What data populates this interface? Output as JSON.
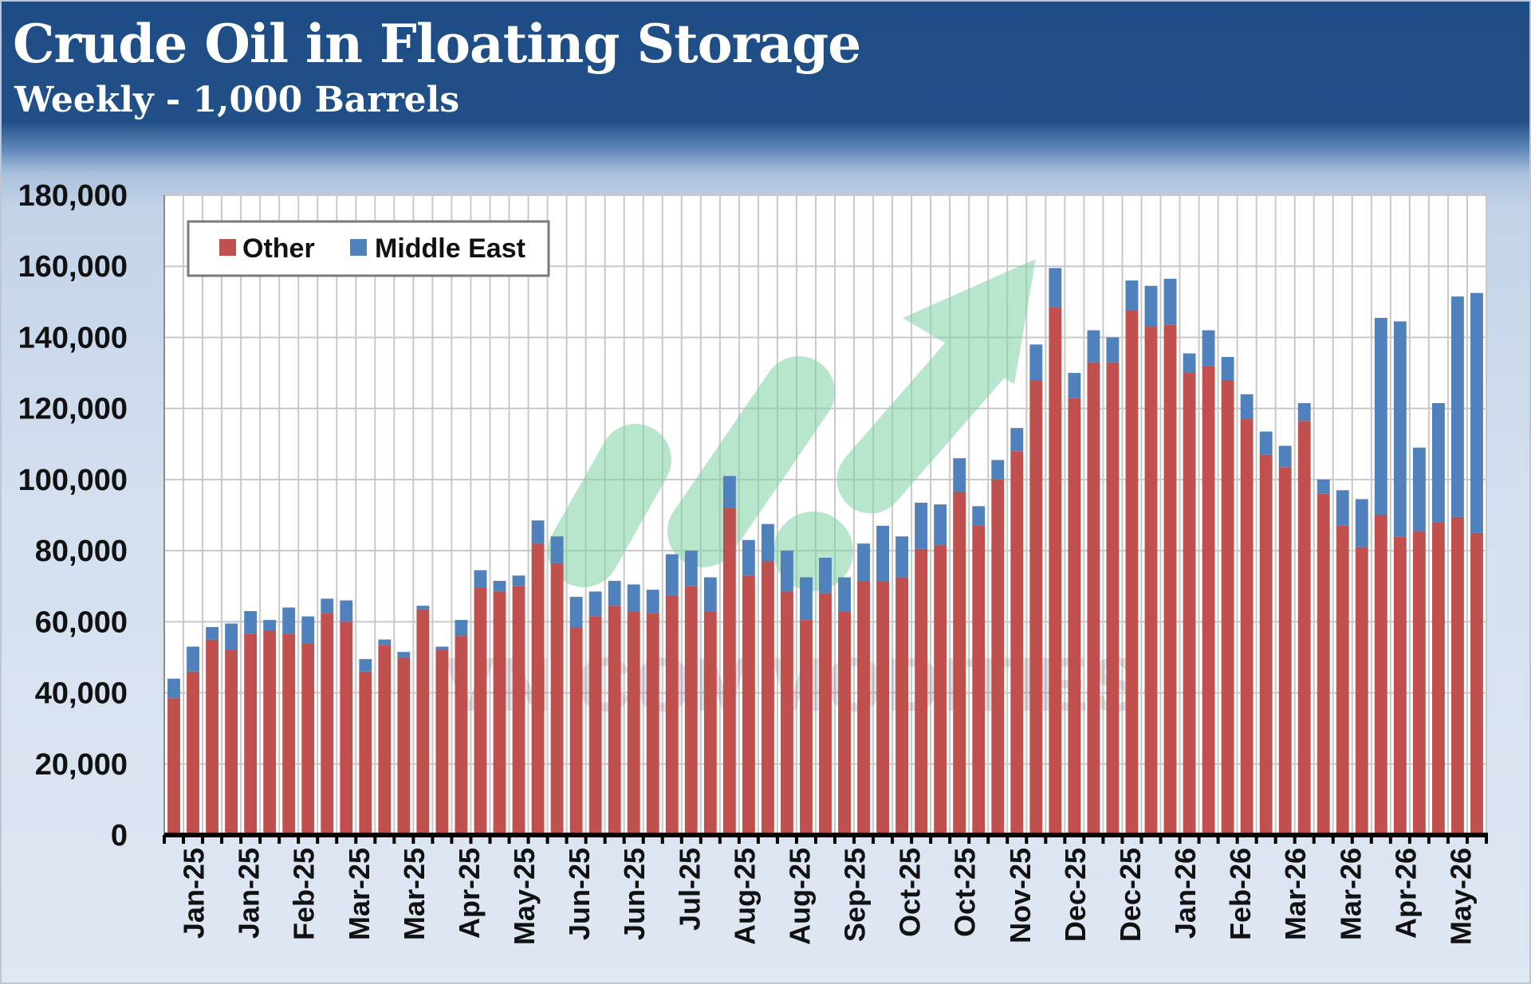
{
  "header": {
    "title": "Crude Oil in Floating Storage",
    "subtitle": "Weekly - 1,000 Barrels"
  },
  "watermark": {
    "text": "VN COMMODITIES",
    "colors": {
      "arrow": "#7fd3a4",
      "text": "#6a4a6a"
    }
  },
  "chart_data": {
    "type": "bar",
    "stacked": true,
    "title": "Crude Oil in Floating Storage",
    "subtitle": "Weekly - 1,000 Barrels",
    "xlabel": "",
    "ylabel": "",
    "ylim": [
      0,
      180000
    ],
    "yticks": [
      0,
      20000,
      40000,
      60000,
      80000,
      100000,
      120000,
      140000,
      160000,
      180000
    ],
    "ytick_labels": [
      "0",
      "20,000",
      "40,000",
      "60,000",
      "80,000",
      "100,000",
      "120,000",
      "140,000",
      "160,000",
      "180,000"
    ],
    "grid": true,
    "legend_position": "top-left",
    "x_tick_labels": [
      "Jan-25",
      "Jan-25",
      "Feb-25",
      "Mar-25",
      "Mar-25",
      "Apr-25",
      "May-25",
      "Jun-25",
      "Jun-25",
      "Jul-25",
      "Aug-25",
      "Aug-25",
      "Sep-25",
      "Oct-25",
      "Oct-25",
      "Nov-25",
      "Dec-25",
      "Dec-25",
      "Jan-26",
      "Feb-26",
      "Mar-26",
      "Mar-26",
      "Apr-26",
      "May-26"
    ],
    "series": [
      {
        "name": "Other",
        "color": "#c0504d",
        "values": [
          38500,
          46000,
          55000,
          52000,
          56500,
          57500,
          56500,
          54000,
          62500,
          60000,
          46000,
          53500,
          50000,
          63500,
          52000,
          56000,
          69500,
          68500,
          70000,
          82000,
          76500,
          58500,
          61500,
          64500,
          63000,
          62500,
          67500,
          70000,
          63000,
          92000,
          73000,
          77000,
          68500,
          60500,
          68000,
          63000,
          71500,
          71500,
          72500,
          80500,
          81500,
          96500,
          87000,
          100000,
          108000,
          128000,
          148500,
          123000,
          133000,
          133000,
          147500,
          143000,
          143500,
          130000,
          132000,
          128000,
          117000,
          107000,
          103500,
          116500,
          96000,
          87000,
          81000,
          90000,
          84000,
          85500,
          88000,
          89500,
          85000
        ]
      },
      {
        "name": "Middle East",
        "color": "#4f81bd",
        "values": [
          5500,
          7000,
          3500,
          7500,
          6500,
          3000,
          7500,
          7500,
          4000,
          6000,
          3500,
          1500,
          1500,
          1000,
          1000,
          4500,
          5000,
          3000,
          3000,
          6500,
          7500,
          8500,
          7000,
          7000,
          7500,
          6500,
          11500,
          10000,
          9500,
          9000,
          10000,
          10500,
          11500,
          12000,
          10000,
          9500,
          10500,
          15500,
          11500,
          13000,
          11500,
          9500,
          5500,
          5500,
          6500,
          10000,
          11000,
          7000,
          9000,
          7000,
          8500,
          11500,
          13000,
          5500,
          10000,
          6500,
          7000,
          6500,
          6000,
          5000,
          4000,
          10000,
          13500,
          55500,
          60500,
          23500,
          33500,
          62000,
          67500
        ]
      }
    ]
  }
}
